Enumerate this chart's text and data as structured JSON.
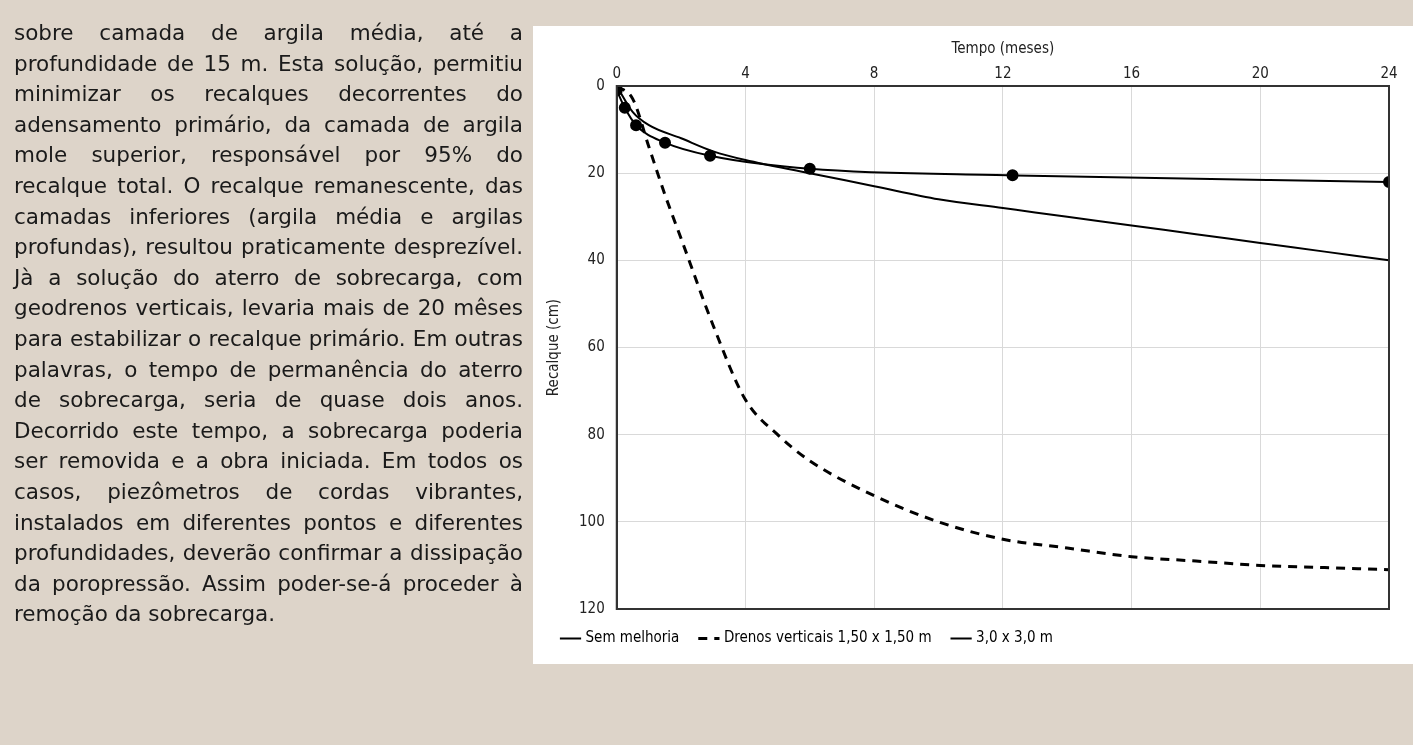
{
  "chart_data": {
    "type": "line",
    "xlabel": "Tempo (meses)",
    "ylabel": "Recalque (cm)",
    "xlim": [
      0,
      24
    ],
    "xticks": [
      0,
      4,
      8,
      12,
      16,
      20,
      24
    ],
    "ylim": [
      120,
      0
    ],
    "yticks": [
      0,
      20,
      40,
      60,
      80,
      100,
      120
    ],
    "grid": true,
    "legend": "bottom",
    "series": [
      {
        "name": "Sem melhoria",
        "color": "#000000",
        "line_style": "solid",
        "marker": "none",
        "x": [
          0,
          0.5,
          1,
          2,
          3,
          4,
          6,
          8,
          10,
          12,
          14,
          16,
          18,
          20,
          22,
          24
        ],
        "values": [
          0,
          6,
          9,
          12,
          15,
          17,
          20,
          23,
          26,
          28,
          30,
          32,
          34,
          36,
          38,
          40
        ]
      },
      {
        "name": "Drenos verticais 1,50 x 1,50 m",
        "color": "#000000",
        "line_style": "dashed",
        "marker": "none",
        "x": [
          0,
          0.5,
          1,
          1.5,
          2,
          3,
          4,
          5,
          6,
          8,
          10,
          12,
          14,
          16,
          18,
          20,
          22,
          24
        ],
        "values": [
          0,
          3,
          14,
          25,
          35,
          55,
          72,
          80,
          86,
          94,
          100,
          104,
          106,
          108,
          109,
          110,
          110.5,
          111
        ]
      },
      {
        "name": "3,0 x 3,0 m",
        "color": "#000000",
        "line_style": "solid",
        "marker": "circle",
        "x": [
          0,
          0.25,
          0.6,
          1.5,
          2.9,
          6,
          12.3,
          24
        ],
        "values": [
          1,
          5,
          9,
          13,
          16,
          19,
          20.5,
          22
        ]
      }
    ],
    "annotations": [
      "sobre camada de argila média, até a profundidade de 15 m. Esta solução, permitiu minimizar os recalques decorrentes do adensamento primário, da camada de argila mole superior, responsável por 95% do recalque total. O recalque remanescente, das camadas inferiores (argila média e argilas profundas), resultou praticamente desprezível. Jà a solução do aterro de sobrecarga, com geodrenos verticais, levaria mais de 20 mêses para estabilizar o recalque primário. Em outras palavras, o tempo de permanência do aterro de sobrecarga, seria de quase dois anos. Decorrido este tempo, a sobrecarga poderia ser removida e a obra iniciada. Em todos os casos, piezômetros de cordas vibrantes, instalados em diferentes pontos e diferentes profundidades, deverão confirmar a dissipação da poropressão. Assim poder-se-á proceder à remoção da sobrecarga."
    ]
  }
}
